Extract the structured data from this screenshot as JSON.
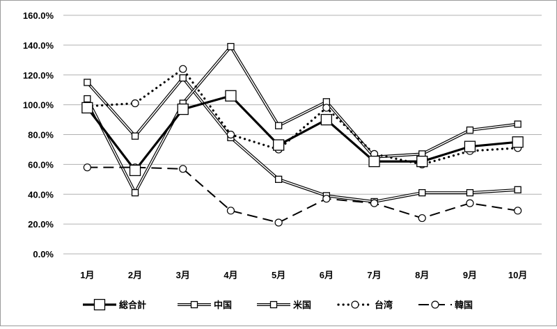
{
  "chart_data": {
    "type": "line",
    "categories": [
      "1月",
      "2月",
      "3月",
      "4月",
      "5月",
      "6月",
      "7月",
      "8月",
      "9月",
      "10月"
    ],
    "ylim": [
      0,
      160
    ],
    "yticks": [
      0,
      20,
      40,
      60,
      80,
      100,
      120,
      140,
      160
    ],
    "ytick_labels": [
      "0.0%",
      "20.0%",
      "40.0%",
      "60.0%",
      "80.0%",
      "100.0%",
      "120.0%",
      "140.0%",
      "160.0%"
    ],
    "grid": "horizontal",
    "legend_position": "bottom",
    "series": [
      {
        "name": "総合計",
        "values": [
          98,
          56,
          97,
          106,
          73,
          90,
          62,
          62,
          72,
          75
        ],
        "style": "thick-solid",
        "marker": "square-large",
        "color": "#000000"
      },
      {
        "name": "中国",
        "values": [
          104,
          41,
          101,
          139,
          86,
          102,
          65,
          67,
          83,
          87
        ],
        "style": "double",
        "marker": "square",
        "color": "#000000"
      },
      {
        "name": "米国",
        "values": [
          115,
          79,
          118,
          78,
          50,
          39,
          35,
          41,
          41,
          43
        ],
        "style": "double",
        "marker": "square",
        "color": "#000000"
      },
      {
        "name": "台湾",
        "values": [
          99,
          101,
          124,
          80,
          70,
          98,
          67,
          60,
          69,
          71
        ],
        "style": "dotted",
        "marker": "circle",
        "color": "#000000"
      },
      {
        "name": "韓国",
        "values": [
          58,
          58,
          57,
          29,
          21,
          37,
          34,
          24,
          34,
          29
        ],
        "style": "dashed",
        "marker": "circle",
        "color": "#000000"
      }
    ]
  }
}
